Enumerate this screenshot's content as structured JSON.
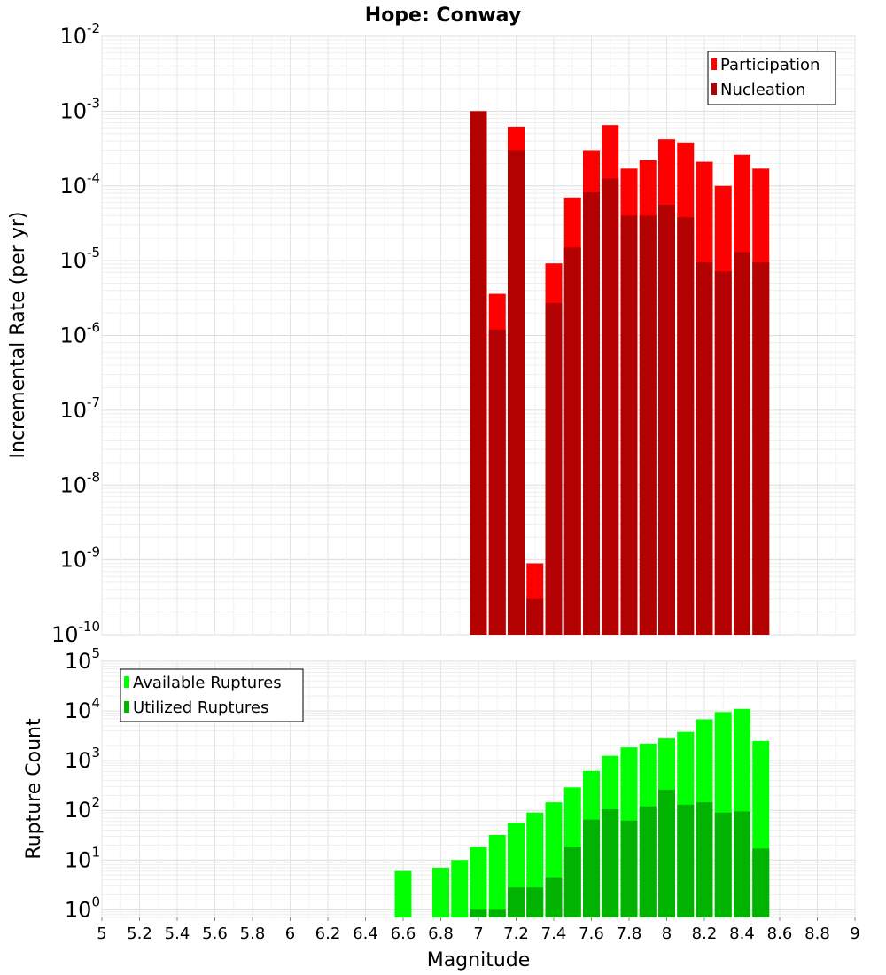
{
  "chart_data": [
    {
      "type": "bar",
      "title": "Hope: Conway",
      "ylabel": "Incremental Rate (per yr)",
      "yscale": "log",
      "ylim": [
        1e-10,
        0.01
      ],
      "xlim": [
        5,
        9
      ],
      "grid": true,
      "legend_position": "top-right",
      "x": [
        7.0,
        7.1,
        7.2,
        7.3,
        7.4,
        7.5,
        7.6,
        7.7,
        7.8,
        7.9,
        8.0,
        8.1,
        8.2,
        8.3,
        8.4,
        8.5
      ],
      "series": [
        {
          "name": "Participation",
          "color": "#ff0000",
          "values": [
            0.001,
            3.6e-06,
            0.00062,
            9e-10,
            9.2e-06,
            7e-05,
            0.0003,
            0.00065,
            0.00017,
            0.00022,
            0.00042,
            0.00038,
            0.00021,
            0.0001,
            0.00026,
            0.00017
          ]
        },
        {
          "name": "Nucleation",
          "color": "#b30000",
          "values": [
            0.001,
            1.2e-06,
            0.0003,
            3e-10,
            2.7e-06,
            1.5e-05,
            8.2e-05,
            0.000125,
            4e-05,
            4e-05,
            5.6e-05,
            3.8e-05,
            9.5e-06,
            7.2e-06,
            1.3e-05,
            9.5e-06
          ]
        }
      ]
    },
    {
      "type": "bar",
      "xlabel": "Magnitude",
      "ylabel": "Rupture Count",
      "yscale": "log",
      "ylim": [
        0.7,
        100000
      ],
      "xlim": [
        5,
        9
      ],
      "grid": true,
      "legend_position": "top-left",
      "x": [
        6.6,
        6.8,
        6.9,
        7.0,
        7.1,
        7.2,
        7.3,
        7.4,
        7.5,
        7.6,
        7.7,
        7.8,
        7.9,
        8.0,
        8.1,
        8.2,
        8.3,
        8.4,
        8.5
      ],
      "series": [
        {
          "name": "Available Ruptures",
          "color": "#00ff00",
          "values": [
            6,
            7,
            10,
            18,
            32,
            56,
            90,
            145,
            290,
            620,
            1250,
            1850,
            2200,
            2800,
            3800,
            6800,
            9500,
            11000,
            2500
          ]
        },
        {
          "name": "Utilized Ruptures",
          "color": "#00b300",
          "values": [
            null,
            null,
            null,
            1,
            1,
            2.8,
            2.8,
            4.5,
            18,
            65,
            105,
            62,
            120,
            260,
            130,
            145,
            90,
            95,
            17
          ]
        }
      ],
      "x_ticks": [
        "5",
        "5.2",
        "5.4",
        "5.6",
        "5.8",
        "6",
        "6.2",
        "6.4",
        "6.6",
        "6.8",
        "7",
        "7.2",
        "7.4",
        "7.6",
        "7.8",
        "8",
        "8.2",
        "8.4",
        "8.6",
        "8.8",
        "9"
      ]
    }
  ]
}
